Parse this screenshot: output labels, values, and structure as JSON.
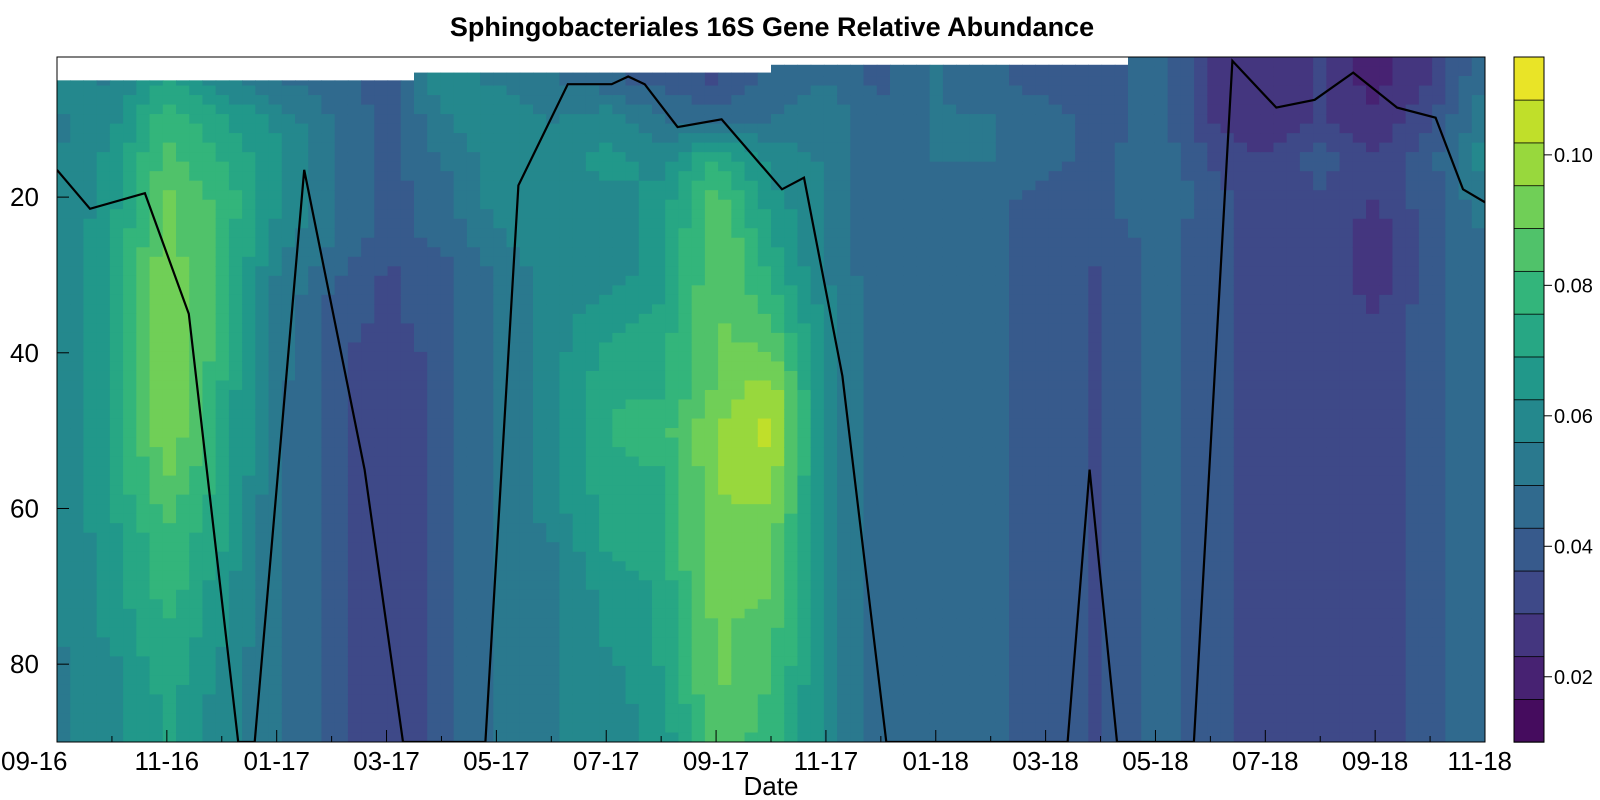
{
  "chart_data": {
    "type": "heatmap",
    "title": "Sphingobacteriales 16S Gene Relative Abundance",
    "xlabel": "Date",
    "ylabel": "",
    "x_tick_labels": [
      "09-16",
      "11-16",
      "01-17",
      "03-17",
      "05-17",
      "07-17",
      "09-17",
      "11-17",
      "01-18",
      "03-18",
      "05-18",
      "07-18",
      "09-18",
      "11-18"
    ],
    "x_tick_months": [
      0,
      2,
      4,
      6,
      8,
      10,
      12,
      14,
      16,
      18,
      20,
      22,
      24,
      26
    ],
    "x_range_months": [
      0,
      26
    ],
    "y_tick_labels": [
      "20",
      "40",
      "60",
      "80"
    ],
    "y_tick_values": [
      20,
      40,
      60,
      80
    ],
    "ylim": [
      90,
      2
    ],
    "y_inverted": true,
    "colorbar": {
      "colormap": "viridis",
      "range": [
        0.01,
        0.115
      ],
      "tick_labels": [
        "0.02",
        "0.04",
        "0.06",
        "0.08",
        "0.10"
      ],
      "tick_values": [
        0.02,
        0.04,
        0.06,
        0.08,
        0.1
      ],
      "levels": 16
    },
    "grid": false,
    "line_series": {
      "color": "#000000",
      "points": [
        [
          0.0,
          16.5
        ],
        [
          0.6,
          21.5
        ],
        [
          1.6,
          19.5
        ],
        [
          2.4,
          35
        ],
        [
          3.3,
          90
        ],
        [
          3.6,
          90
        ],
        [
          4.5,
          16.5
        ],
        [
          5.6,
          55
        ],
        [
          6.3,
          90
        ],
        [
          7.8,
          90
        ],
        [
          8.4,
          18.5
        ],
        [
          9.3,
          5.5
        ],
        [
          10.1,
          5.5
        ],
        [
          10.4,
          4.5
        ],
        [
          10.7,
          5.5
        ],
        [
          11.3,
          11
        ],
        [
          12.1,
          10
        ],
        [
          13.2,
          19
        ],
        [
          13.6,
          17.5
        ],
        [
          14.3,
          43
        ],
        [
          15.1,
          90
        ],
        [
          18.4,
          90
        ],
        [
          18.8,
          55
        ],
        [
          19.3,
          90
        ],
        [
          20.7,
          90
        ],
        [
          21.4,
          2.5
        ],
        [
          22.2,
          8.5
        ],
        [
          22.9,
          7.5
        ],
        [
          23.6,
          4
        ],
        [
          24.4,
          8.5
        ],
        [
          25.1,
          9.8
        ],
        [
          25.6,
          19
        ],
        [
          26.2,
          21.5
        ],
        [
          26.9,
          29
        ]
      ]
    },
    "heat_rows": {
      "depths": [
        5,
        10,
        15,
        20,
        25,
        30,
        35,
        40,
        45,
        50,
        55,
        60,
        65,
        70,
        75,
        80,
        85,
        90
      ],
      "months": [
        0,
        1,
        2,
        3,
        4,
        5,
        6,
        7,
        8,
        9,
        10,
        11,
        12,
        13,
        14,
        15,
        16,
        17,
        18,
        19,
        20,
        21,
        22,
        23,
        24,
        25,
        26
      ],
      "values": [
        [
          0.06,
          0.055,
          0.07,
          0.06,
          0.05,
          0.045,
          0.04,
          0.06,
          0.055,
          0.05,
          0.045,
          0.04,
          0.035,
          0.045,
          0.05,
          0.04,
          0.05,
          0.045,
          0.04,
          0.04,
          0.045,
          0.03,
          0.025,
          0.03,
          0.02,
          0.03,
          0.05
        ],
        [
          0.055,
          0.06,
          0.08,
          0.07,
          0.06,
          0.05,
          0.04,
          0.055,
          0.06,
          0.055,
          0.06,
          0.05,
          0.045,
          0.05,
          0.055,
          0.045,
          0.05,
          0.05,
          0.045,
          0.04,
          0.045,
          0.03,
          0.025,
          0.03,
          0.025,
          0.035,
          0.055
        ],
        [
          0.055,
          0.065,
          0.085,
          0.075,
          0.065,
          0.05,
          0.04,
          0.05,
          0.06,
          0.06,
          0.065,
          0.06,
          0.075,
          0.06,
          0.055,
          0.045,
          0.05,
          0.05,
          0.045,
          0.04,
          0.05,
          0.035,
          0.03,
          0.04,
          0.03,
          0.04,
          0.06
        ],
        [
          0.055,
          0.065,
          0.09,
          0.08,
          0.065,
          0.05,
          0.04,
          0.045,
          0.06,
          0.06,
          0.06,
          0.065,
          0.085,
          0.065,
          0.055,
          0.045,
          0.045,
          0.045,
          0.04,
          0.04,
          0.05,
          0.04,
          0.03,
          0.035,
          0.03,
          0.04,
          0.055
        ],
        [
          0.055,
          0.07,
          0.09,
          0.08,
          0.06,
          0.05,
          0.04,
          0.045,
          0.055,
          0.06,
          0.06,
          0.065,
          0.09,
          0.07,
          0.055,
          0.045,
          0.045,
          0.045,
          0.04,
          0.04,
          0.045,
          0.04,
          0.03,
          0.035,
          0.025,
          0.04,
          0.05
        ],
        [
          0.055,
          0.07,
          0.095,
          0.08,
          0.055,
          0.045,
          0.035,
          0.04,
          0.05,
          0.06,
          0.06,
          0.065,
          0.09,
          0.075,
          0.055,
          0.045,
          0.045,
          0.045,
          0.04,
          0.035,
          0.045,
          0.04,
          0.03,
          0.035,
          0.025,
          0.04,
          0.05
        ],
        [
          0.055,
          0.07,
          0.095,
          0.08,
          0.055,
          0.04,
          0.035,
          0.04,
          0.05,
          0.06,
          0.065,
          0.07,
          0.09,
          0.08,
          0.06,
          0.045,
          0.045,
          0.045,
          0.04,
          0.035,
          0.045,
          0.04,
          0.03,
          0.035,
          0.03,
          0.04,
          0.05
        ],
        [
          0.055,
          0.07,
          0.095,
          0.08,
          0.055,
          0.04,
          0.03,
          0.04,
          0.05,
          0.06,
          0.07,
          0.075,
          0.09,
          0.09,
          0.06,
          0.045,
          0.045,
          0.045,
          0.04,
          0.035,
          0.045,
          0.04,
          0.03,
          0.035,
          0.03,
          0.04,
          0.05
        ],
        [
          0.055,
          0.07,
          0.095,
          0.075,
          0.05,
          0.04,
          0.03,
          0.04,
          0.05,
          0.06,
          0.075,
          0.075,
          0.09,
          0.1,
          0.06,
          0.045,
          0.045,
          0.045,
          0.04,
          0.035,
          0.045,
          0.04,
          0.03,
          0.035,
          0.03,
          0.04,
          0.05
        ],
        [
          0.055,
          0.07,
          0.095,
          0.075,
          0.05,
          0.04,
          0.03,
          0.04,
          0.05,
          0.06,
          0.075,
          0.08,
          0.095,
          0.105,
          0.06,
          0.045,
          0.045,
          0.045,
          0.04,
          0.035,
          0.045,
          0.04,
          0.03,
          0.035,
          0.03,
          0.04,
          0.05
        ],
        [
          0.055,
          0.07,
          0.09,
          0.075,
          0.05,
          0.04,
          0.03,
          0.04,
          0.05,
          0.06,
          0.075,
          0.075,
          0.095,
          0.1,
          0.06,
          0.045,
          0.045,
          0.045,
          0.04,
          0.035,
          0.045,
          0.04,
          0.03,
          0.035,
          0.03,
          0.04,
          0.05
        ],
        [
          0.055,
          0.07,
          0.085,
          0.07,
          0.05,
          0.04,
          0.03,
          0.04,
          0.05,
          0.06,
          0.07,
          0.075,
          0.095,
          0.095,
          0.06,
          0.045,
          0.045,
          0.045,
          0.04,
          0.035,
          0.045,
          0.04,
          0.03,
          0.035,
          0.03,
          0.04,
          0.05
        ],
        [
          0.055,
          0.065,
          0.08,
          0.07,
          0.05,
          0.04,
          0.03,
          0.04,
          0.05,
          0.055,
          0.07,
          0.075,
          0.095,
          0.09,
          0.06,
          0.045,
          0.045,
          0.045,
          0.04,
          0.035,
          0.045,
          0.04,
          0.03,
          0.035,
          0.03,
          0.04,
          0.05
        ],
        [
          0.055,
          0.065,
          0.08,
          0.065,
          0.05,
          0.04,
          0.03,
          0.04,
          0.05,
          0.055,
          0.065,
          0.07,
          0.095,
          0.09,
          0.06,
          0.045,
          0.045,
          0.045,
          0.04,
          0.035,
          0.045,
          0.04,
          0.03,
          0.035,
          0.03,
          0.04,
          0.05
        ],
        [
          0.055,
          0.065,
          0.075,
          0.065,
          0.05,
          0.04,
          0.03,
          0.04,
          0.05,
          0.055,
          0.065,
          0.07,
          0.09,
          0.085,
          0.06,
          0.045,
          0.045,
          0.045,
          0.04,
          0.035,
          0.045,
          0.04,
          0.03,
          0.035,
          0.03,
          0.04,
          0.05
        ],
        [
          0.055,
          0.06,
          0.075,
          0.06,
          0.05,
          0.04,
          0.03,
          0.04,
          0.05,
          0.055,
          0.06,
          0.07,
          0.09,
          0.085,
          0.06,
          0.045,
          0.045,
          0.045,
          0.04,
          0.035,
          0.045,
          0.04,
          0.03,
          0.035,
          0.03,
          0.04,
          0.05
        ],
        [
          0.055,
          0.06,
          0.07,
          0.06,
          0.05,
          0.04,
          0.03,
          0.04,
          0.05,
          0.055,
          0.06,
          0.065,
          0.09,
          0.08,
          0.06,
          0.045,
          0.045,
          0.045,
          0.04,
          0.035,
          0.045,
          0.04,
          0.03,
          0.035,
          0.03,
          0.04,
          0.05
        ],
        [
          0.055,
          0.06,
          0.07,
          0.06,
          0.05,
          0.04,
          0.03,
          0.04,
          0.05,
          0.055,
          0.06,
          0.065,
          0.085,
          0.08,
          0.06,
          0.045,
          0.045,
          0.045,
          0.04,
          0.035,
          0.045,
          0.04,
          0.03,
          0.035,
          0.03,
          0.04,
          0.05
        ]
      ]
    }
  }
}
